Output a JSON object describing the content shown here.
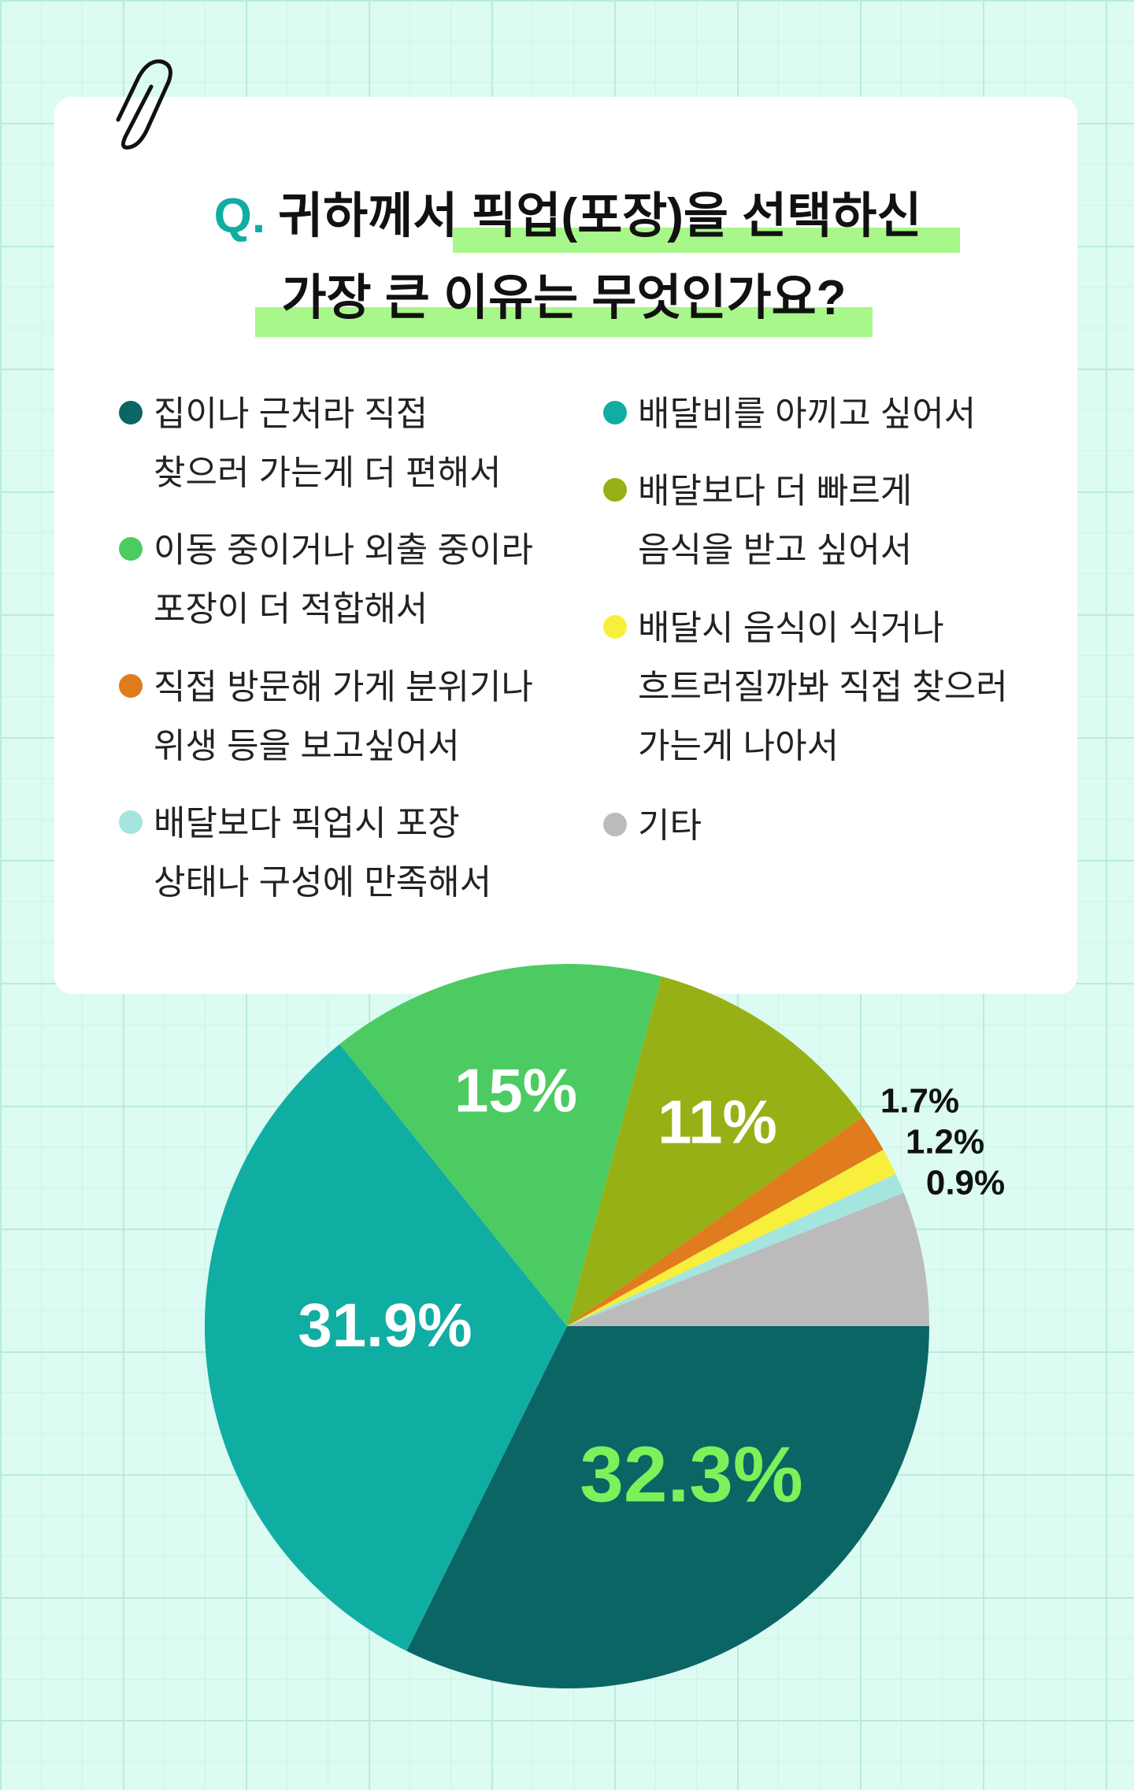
{
  "chart_data": {
    "type": "pie",
    "q_label": "Q.",
    "title": [
      "귀하께서 픽업(포장)을 선택하신",
      "가장 큰 이유는 무엇인가요?"
    ],
    "categories": [
      "집이나 근처라 직접\n찾으러 가는게 더 편해서",
      "배달비를 아끼고 싶어서",
      "이동 중이거나 외출 중이라\n포장이 더 적합해서",
      "배달보다 더 빠르게\n음식을 받고 싶어서",
      "직접 방문해 가게 분위기나\n위생 등을 보고싶어서",
      "배달시 음식이 식거나\n흐트러질까봐 직접 찾으러\n가는게 나아서",
      "배달보다 픽업시 포장\n상태나 구성에 만족해서",
      "기타"
    ],
    "values": [
      32.3,
      31.9,
      15,
      11,
      1.7,
      1.2,
      0.9,
      6.0
    ],
    "value_labels": [
      "32.3%",
      "31.9%",
      "15%",
      "11%",
      "1.7%",
      "1.2%",
      "0.9%",
      null
    ],
    "colors": [
      "#0b6565",
      "#10ada3",
      "#4ccb63",
      "#97b015",
      "#e07b1e",
      "#f7ef3c",
      "#a5e5df",
      "#bbbbbb"
    ]
  }
}
